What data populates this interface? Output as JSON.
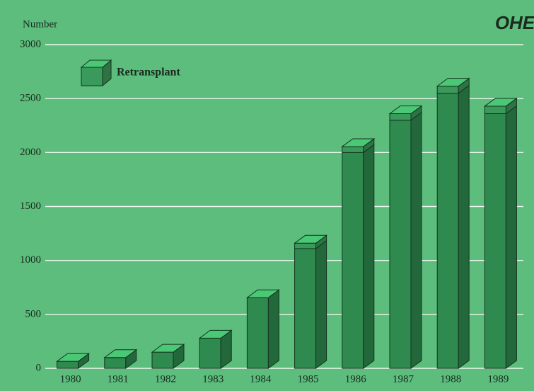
{
  "chart_data": {
    "type": "bar",
    "stacked": true,
    "y_axis_label": "Number",
    "logo": "OHE",
    "categories": [
      "1980",
      "1981",
      "1982",
      "1983",
      "1984",
      "1985",
      "1986",
      "1987",
      "1988",
      "1989"
    ],
    "series": [
      {
        "color": "#2f8a4f",
        "values": [
          65,
          100,
          150,
          280,
          655,
          1110,
          2000,
          2300,
          2550,
          2360
        ]
      },
      {
        "name": "Retransplant",
        "color": "#3a9a5b",
        "values": [
          0,
          0,
          0,
          0,
          0,
          50,
          55,
          60,
          65,
          70
        ]
      }
    ],
    "ylim": [
      0,
      3000
    ],
    "yticks": [
      0,
      500,
      1000,
      1500,
      2000,
      2500,
      3000
    ],
    "grid": true
  }
}
